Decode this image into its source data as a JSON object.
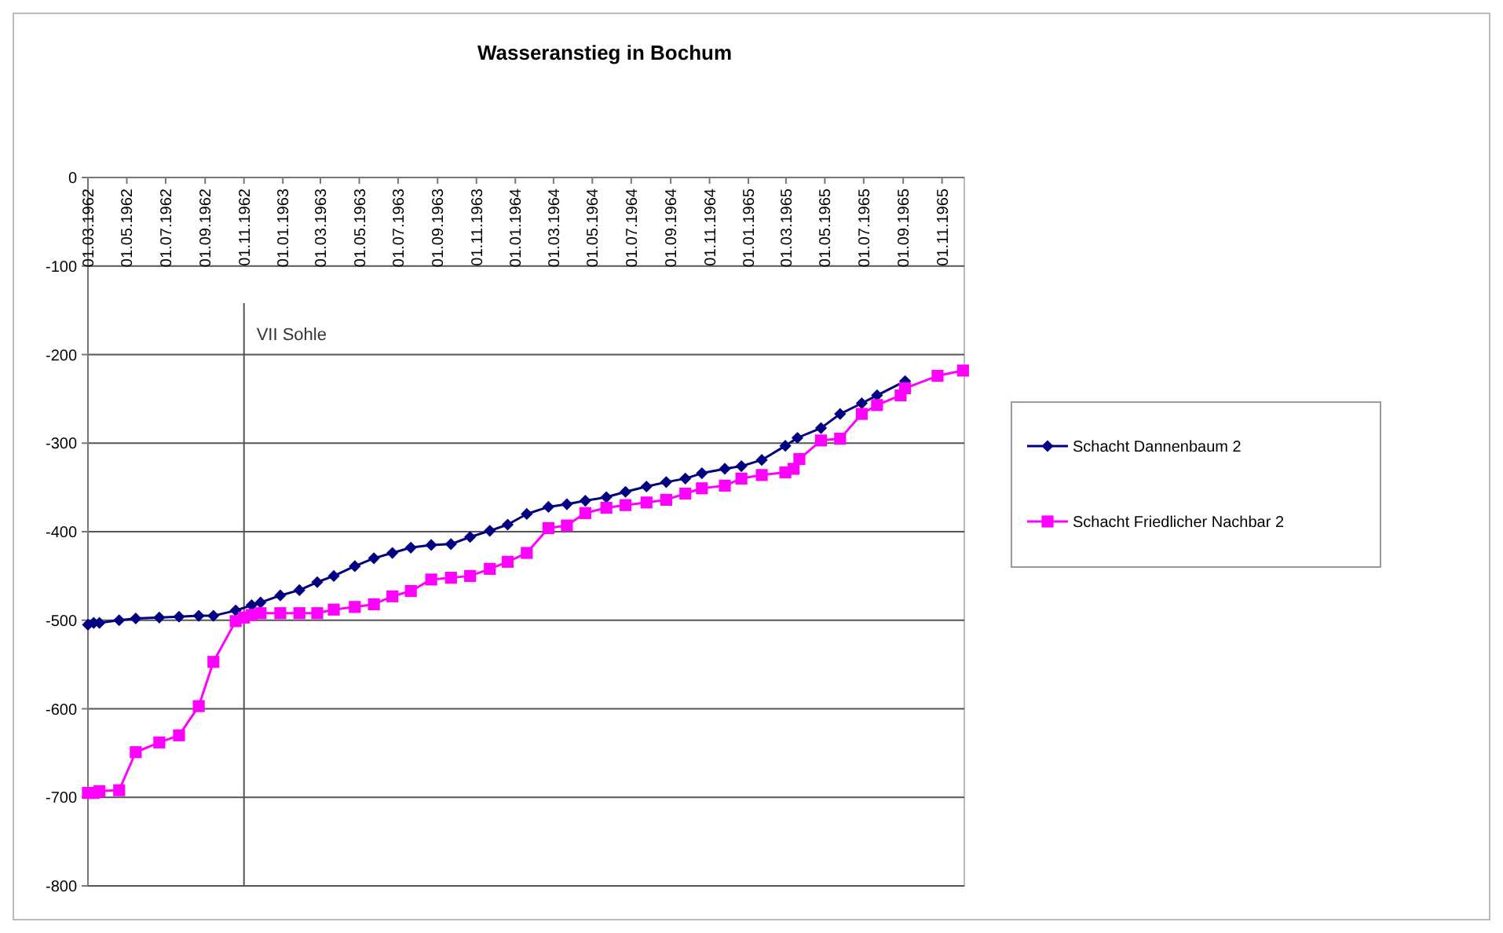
{
  "chart_data": {
    "type": "line",
    "title": "Wasseranstieg in Bochum",
    "xlim": [
      "1962-03-01",
      "1965-12-06"
    ],
    "xticks": [
      {
        "value": "1962-03-01",
        "label": "01.03.1962"
      },
      {
        "value": "1962-05-01",
        "label": "01.05.1962"
      },
      {
        "value": "1962-07-01",
        "label": "01.07.1962"
      },
      {
        "value": "1962-09-01",
        "label": "01.09.1962"
      },
      {
        "value": "1962-11-01",
        "label": "01.11.1962"
      },
      {
        "value": "1963-01-01",
        "label": "01.01.1963"
      },
      {
        "value": "1963-03-01",
        "label": "01.03.1963"
      },
      {
        "value": "1963-05-01",
        "label": "01.05.1963"
      },
      {
        "value": "1963-07-01",
        "label": "01.07.1963"
      },
      {
        "value": "1963-09-01",
        "label": "01.09.1963"
      },
      {
        "value": "1963-11-01",
        "label": "01.11.1963"
      },
      {
        "value": "1964-01-01",
        "label": "01.01.1964"
      },
      {
        "value": "1964-03-01",
        "label": "01.03.1964"
      },
      {
        "value": "1964-05-01",
        "label": "01.05.1964"
      },
      {
        "value": "1964-07-01",
        "label": "01.07.1964"
      },
      {
        "value": "1964-09-01",
        "label": "01.09.1964"
      },
      {
        "value": "1964-11-01",
        "label": "01.11.1964"
      },
      {
        "value": "1965-01-01",
        "label": "01.01.1965"
      },
      {
        "value": "1965-03-01",
        "label": "01.03.1965"
      },
      {
        "value": "1965-05-01",
        "label": "01.05.1965"
      },
      {
        "value": "1965-07-01",
        "label": "01.07.1965"
      },
      {
        "value": "1965-09-01",
        "label": "01.09.1965"
      },
      {
        "value": "1965-11-01",
        "label": "01.11.1965"
      }
    ],
    "ylim": [
      -800,
      0
    ],
    "yticks": [
      -800,
      -700,
      -600,
      -500,
      -400,
      -300,
      -200,
      -100,
      0
    ],
    "grid": "y",
    "legend": "right",
    "line_style": "solid",
    "ref_lines": [
      {
        "axis": "x",
        "value": "1962-11-01",
        "label": "VII Sohle",
        "color": "#555555"
      }
    ],
    "series": [
      {
        "name": "Schacht Dannenbaum 2",
        "color": "#000080",
        "marker": "diamond",
        "x": [
          "1962-03-01",
          "1962-03-10",
          "1962-03-19",
          "1962-04-19",
          "1962-05-15",
          "1962-06-21",
          "1962-07-22",
          "1962-08-22",
          "1962-09-14",
          "1962-10-19",
          "1962-11-13",
          "1962-11-27",
          "1962-12-28",
          "1963-01-27",
          "1963-02-24",
          "1963-03-22",
          "1963-04-24",
          "1963-05-24",
          "1963-06-22",
          "1963-07-21",
          "1963-08-22",
          "1963-09-22",
          "1963-10-22",
          "1963-11-22",
          "1963-12-20",
          "1964-01-19",
          "1964-02-22",
          "1964-03-22",
          "1964-04-20",
          "1964-05-23",
          "1964-06-22",
          "1964-07-25",
          "1964-08-25",
          "1964-09-24",
          "1964-10-20",
          "1964-11-25",
          "1964-12-21",
          "1965-01-22",
          "1965-02-28",
          "1965-03-19",
          "1965-04-25",
          "1965-05-25",
          "1965-06-28",
          "1965-07-22",
          "1965-09-04"
        ],
        "values": [
          -505,
          -503,
          -503,
          -500,
          -498,
          -497,
          -496,
          -495,
          -495,
          -489,
          -483,
          -480,
          -472,
          -466,
          -457,
          -450,
          -439,
          -430,
          -424,
          -418,
          -415,
          -414,
          -406,
          -399,
          -392,
          -380,
          -372,
          -369,
          -365,
          -361,
          -355,
          -349,
          -344,
          -340,
          -334,
          -329,
          -326,
          -319,
          -303,
          -294,
          -283,
          -267,
          -255,
          -246,
          -230
        ]
      },
      {
        "name": "Schacht Friedlicher Nachbar 2",
        "color": "#ff00ff",
        "marker": "square",
        "x": [
          "1962-03-01",
          "1962-03-10",
          "1962-03-19",
          "1962-04-19",
          "1962-05-15",
          "1962-06-21",
          "1962-07-22",
          "1962-08-22",
          "1962-09-14",
          "1962-10-19",
          "1962-11-01",
          "1962-11-13",
          "1962-11-27",
          "1962-12-28",
          "1963-01-27",
          "1963-02-24",
          "1963-03-22",
          "1963-04-24",
          "1963-05-24",
          "1963-06-22",
          "1963-07-21",
          "1963-08-22",
          "1963-09-22",
          "1963-10-22",
          "1963-11-22",
          "1963-12-20",
          "1964-01-19",
          "1964-02-22",
          "1964-03-22",
          "1964-04-20",
          "1964-05-23",
          "1964-06-22",
          "1964-07-25",
          "1964-08-25",
          "1964-09-24",
          "1964-10-20",
          "1964-11-25",
          "1964-12-21",
          "1965-01-22",
          "1965-02-28",
          "1965-03-13",
          "1965-03-22",
          "1965-04-25",
          "1965-05-25",
          "1965-06-28",
          "1965-07-22",
          "1965-08-28",
          "1965-09-04",
          "1965-10-25",
          "1965-12-04"
        ],
        "values": [
          -695,
          -695,
          -693,
          -692,
          -649,
          -638,
          -630,
          -597,
          -547,
          -501,
          -497,
          -494,
          -492,
          -492,
          -492,
          -492,
          -488,
          -485,
          -482,
          -473,
          -467,
          -454,
          -452,
          -450,
          -442,
          -434,
          -424,
          -396,
          -393,
          -379,
          -373,
          -370,
          -367,
          -364,
          -357,
          -351,
          -348,
          -340,
          -336,
          -333,
          -329,
          -318,
          -297,
          -295,
          -267,
          -257,
          -246,
          -238,
          -224,
          -218
        ]
      }
    ]
  }
}
